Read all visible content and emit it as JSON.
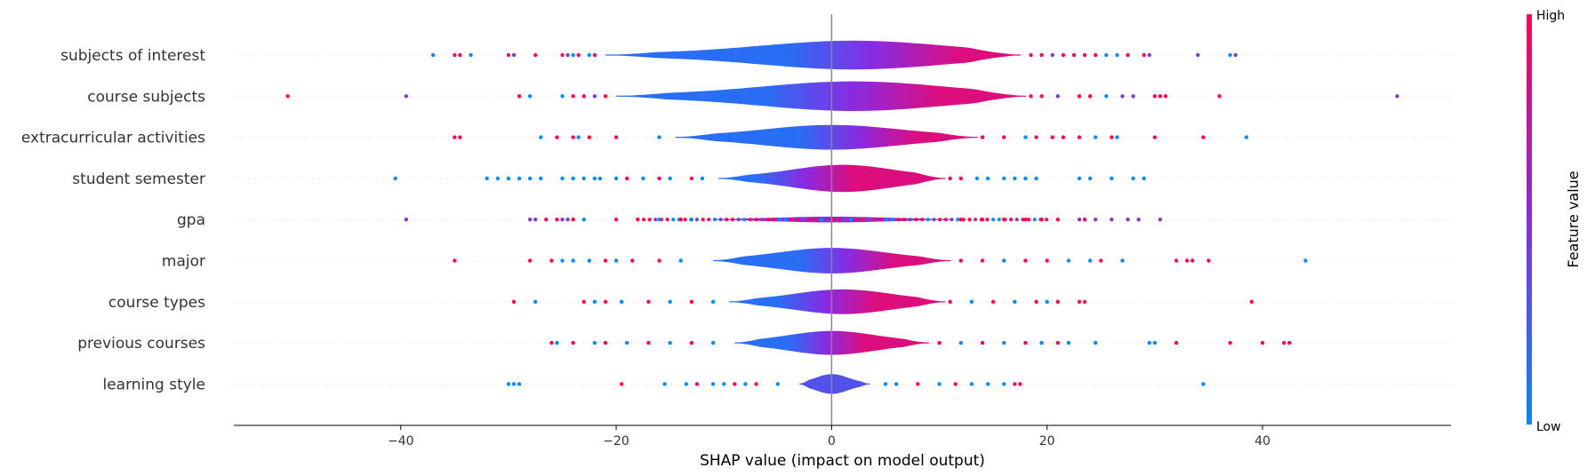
{
  "chart_data": {
    "type": "violin",
    "xlabel": "SHAP value (impact on model output)",
    "xlim": [
      -55.5,
      57.5
    ],
    "xticks": [
      -40,
      -20,
      0,
      20,
      40
    ],
    "xtick_labels": [
      "−40",
      "−20",
      "0",
      "20",
      "40"
    ],
    "features": [
      {
        "name": "subjects of interest",
        "violin_range": [
          -21,
          17.5
        ],
        "max_halfwidth": 0.35,
        "peak_at": 2,
        "color_low": -4,
        "color_high": 12,
        "outliers": [
          [
            -37,
            "low"
          ],
          [
            -35,
            "high"
          ],
          [
            -34.5,
            "high"
          ],
          [
            -33.5,
            "low"
          ],
          [
            -30,
            "high"
          ],
          [
            -29.5,
            "mid"
          ],
          [
            -27.5,
            "high"
          ],
          [
            -25,
            "high"
          ],
          [
            -24.5,
            "mid"
          ],
          [
            -24,
            "low"
          ],
          [
            -23.5,
            "high"
          ],
          [
            -22.5,
            "low"
          ],
          [
            -22,
            "high"
          ],
          [
            18.5,
            "high"
          ],
          [
            19.5,
            "high"
          ],
          [
            20.5,
            "mid"
          ],
          [
            21.5,
            "high"
          ],
          [
            22.5,
            "high"
          ],
          [
            23.5,
            "high"
          ],
          [
            24.5,
            "high"
          ],
          [
            25.5,
            "low"
          ],
          [
            26.5,
            "low"
          ],
          [
            27.5,
            "high"
          ],
          [
            29,
            "high"
          ],
          [
            29.5,
            "mid"
          ],
          [
            34,
            "mid"
          ],
          [
            37,
            "low"
          ],
          [
            37.5,
            "mid"
          ]
        ]
      },
      {
        "name": "course subjects",
        "violin_range": [
          -20,
          18
        ],
        "max_halfwidth": 0.36,
        "peak_at": 2,
        "color_low": -6,
        "color_high": 10,
        "outliers": [
          [
            -50.5,
            "high"
          ],
          [
            -39.5,
            "mid"
          ],
          [
            -29,
            "high"
          ],
          [
            -28,
            "low"
          ],
          [
            -25,
            "low"
          ],
          [
            -24,
            "high"
          ],
          [
            -23,
            "high"
          ],
          [
            -22,
            "mid"
          ],
          [
            -21,
            "high"
          ],
          [
            18.5,
            "high"
          ],
          [
            19.5,
            "high"
          ],
          [
            21,
            "mid"
          ],
          [
            23,
            "high"
          ],
          [
            24,
            "high"
          ],
          [
            25.5,
            "low"
          ],
          [
            27,
            "mid"
          ],
          [
            28,
            "mid"
          ],
          [
            30,
            "high"
          ],
          [
            30.5,
            "high"
          ],
          [
            31,
            "high"
          ],
          [
            36,
            "high"
          ],
          [
            52.5,
            "mid"
          ]
        ]
      },
      {
        "name": "extracurricular activities",
        "violin_range": [
          -14.5,
          13.5
        ],
        "max_halfwidth": 0.3,
        "peak_at": 0,
        "color_low": -3,
        "color_high": 8,
        "outliers": [
          [
            -35,
            "high"
          ],
          [
            -34.5,
            "high"
          ],
          [
            -27,
            "low"
          ],
          [
            -25.5,
            "high"
          ],
          [
            -24,
            "high"
          ],
          [
            -23.5,
            "low"
          ],
          [
            -22.5,
            "high"
          ],
          [
            -20,
            "high"
          ],
          [
            -16,
            "low"
          ],
          [
            14,
            "high"
          ],
          [
            16,
            "high"
          ],
          [
            18,
            "low"
          ],
          [
            19,
            "high"
          ],
          [
            20.5,
            "high"
          ],
          [
            21.5,
            "high"
          ],
          [
            23,
            "high"
          ],
          [
            24.5,
            "low"
          ],
          [
            26,
            "high"
          ],
          [
            26.5,
            "low"
          ],
          [
            30,
            "high"
          ],
          [
            34.5,
            "high"
          ],
          [
            38.5,
            "low"
          ]
        ]
      },
      {
        "name": "student semester",
        "violin_range": [
          -10.5,
          10.5
        ],
        "max_halfwidth": 0.33,
        "peak_at": 1,
        "color_low": -7,
        "color_high": 2,
        "outliers": [
          [
            -40.5,
            "low"
          ],
          [
            -32,
            "low"
          ],
          [
            -31,
            "low"
          ],
          [
            -30,
            "low"
          ],
          [
            -29,
            "low"
          ],
          [
            -28,
            "low"
          ],
          [
            -27,
            "low"
          ],
          [
            -25,
            "low"
          ],
          [
            -24,
            "low"
          ],
          [
            -23,
            "low"
          ],
          [
            -22,
            "low"
          ],
          [
            -21.5,
            "low"
          ],
          [
            -20,
            "low"
          ],
          [
            -19,
            "high"
          ],
          [
            -17.5,
            "low"
          ],
          [
            -16,
            "high"
          ],
          [
            -15,
            "low"
          ],
          [
            -13,
            "high"
          ],
          [
            -12,
            "low"
          ],
          [
            11,
            "high"
          ],
          [
            12,
            "high"
          ],
          [
            13.5,
            "low"
          ],
          [
            14.5,
            "low"
          ],
          [
            16,
            "low"
          ],
          [
            17,
            "low"
          ],
          [
            18,
            "low"
          ],
          [
            19,
            "low"
          ],
          [
            23,
            "low"
          ],
          [
            24,
            "low"
          ],
          [
            26,
            "low"
          ],
          [
            28,
            "low"
          ],
          [
            29,
            "low"
          ]
        ]
      },
      {
        "name": "gpa",
        "violin_range": [
          -11,
          11
        ],
        "max_halfwidth": 0.07,
        "peak_at": 0,
        "color_low": -99,
        "color_high": 99,
        "outliers": [
          [
            -39.5,
            "mid"
          ],
          [
            -28,
            "mid"
          ],
          [
            -27.5,
            "mid"
          ],
          [
            -26.5,
            "high"
          ],
          [
            -25.5,
            "high"
          ],
          [
            -25,
            "mid"
          ],
          [
            -24.5,
            "mid"
          ],
          [
            -24,
            "high"
          ],
          [
            -23,
            "low"
          ],
          [
            -20,
            "high"
          ],
          [
            -18,
            "high"
          ],
          [
            -16,
            "low"
          ],
          [
            -14,
            "high"
          ],
          [
            -13,
            "low"
          ],
          [
            12,
            "high"
          ],
          [
            14,
            "high"
          ],
          [
            16,
            "high"
          ],
          [
            18,
            "high"
          ],
          [
            19.5,
            "high"
          ],
          [
            21,
            "high"
          ],
          [
            23,
            "mid"
          ],
          [
            23.5,
            "high"
          ],
          [
            24.5,
            "mid"
          ],
          [
            26,
            "mid"
          ],
          [
            27.5,
            "mid"
          ],
          [
            28.5,
            "mid"
          ],
          [
            30.5,
            "mid"
          ]
        ]
      },
      {
        "name": "major",
        "violin_range": [
          -11,
          11
        ],
        "max_halfwidth": 0.31,
        "peak_at": 0,
        "color_low": -3,
        "color_high": 6,
        "outliers": [
          [
            -35,
            "high"
          ],
          [
            -28,
            "high"
          ],
          [
            -26,
            "high"
          ],
          [
            -25,
            "low"
          ],
          [
            -24,
            "low"
          ],
          [
            -22.5,
            "low"
          ],
          [
            -21,
            "high"
          ],
          [
            -20,
            "low"
          ],
          [
            -18.5,
            "high"
          ],
          [
            -16,
            "high"
          ],
          [
            -14,
            "low"
          ],
          [
            12,
            "high"
          ],
          [
            14,
            "high"
          ],
          [
            16,
            "low"
          ],
          [
            18,
            "high"
          ],
          [
            20,
            "high"
          ],
          [
            22,
            "low"
          ],
          [
            24,
            "low"
          ],
          [
            25,
            "high"
          ],
          [
            27,
            "low"
          ],
          [
            32,
            "high"
          ],
          [
            33,
            "high"
          ],
          [
            33.5,
            "high"
          ],
          [
            35,
            "high"
          ],
          [
            44,
            "low"
          ]
        ]
      },
      {
        "name": "course types",
        "violin_range": [
          -9.5,
          10.5
        ],
        "max_halfwidth": 0.3,
        "peak_at": 1,
        "color_low": -5,
        "color_high": 4,
        "outliers": [
          [
            -29.5,
            "high"
          ],
          [
            -27.5,
            "low"
          ],
          [
            -23,
            "high"
          ],
          [
            -22,
            "low"
          ],
          [
            -21,
            "high"
          ],
          [
            -19.5,
            "low"
          ],
          [
            -17,
            "high"
          ],
          [
            -15,
            "low"
          ],
          [
            -13,
            "high"
          ],
          [
            -11,
            "low"
          ],
          [
            11,
            "high"
          ],
          [
            13,
            "low"
          ],
          [
            15,
            "high"
          ],
          [
            17,
            "low"
          ],
          [
            19,
            "high"
          ],
          [
            20,
            "low"
          ],
          [
            21,
            "high"
          ],
          [
            23,
            "high"
          ],
          [
            23.5,
            "high"
          ],
          [
            39,
            "high"
          ]
        ]
      },
      {
        "name": "previous courses",
        "violin_range": [
          -9,
          9
        ],
        "max_halfwidth": 0.29,
        "peak_at": 0,
        "color_low": -4,
        "color_high": 3,
        "outliers": [
          [
            -26,
            "high"
          ],
          [
            -25.5,
            "low"
          ],
          [
            -24,
            "high"
          ],
          [
            -22,
            "low"
          ],
          [
            -21,
            "high"
          ],
          [
            -19,
            "low"
          ],
          [
            -17,
            "high"
          ],
          [
            -15,
            "low"
          ],
          [
            -13,
            "high"
          ],
          [
            -11,
            "low"
          ],
          [
            10,
            "high"
          ],
          [
            12,
            "low"
          ],
          [
            14,
            "high"
          ],
          [
            16,
            "low"
          ],
          [
            18,
            "high"
          ],
          [
            19.5,
            "low"
          ],
          [
            21,
            "high"
          ],
          [
            22,
            "low"
          ],
          [
            24.5,
            "low"
          ],
          [
            29.5,
            "low"
          ],
          [
            30,
            "low"
          ],
          [
            32,
            "high"
          ],
          [
            37,
            "high"
          ],
          [
            40,
            "high"
          ],
          [
            42,
            "high"
          ],
          [
            42.5,
            "high"
          ]
        ]
      },
      {
        "name": "learning style",
        "violin_range": [
          -3,
          3.5
        ],
        "max_halfwidth": 0.24,
        "peak_at": 0,
        "color_low": 0,
        "color_high": 99,
        "outliers": [
          [
            -30,
            "low"
          ],
          [
            -29.5,
            "low"
          ],
          [
            -29,
            "low"
          ],
          [
            -19.5,
            "high"
          ],
          [
            -15.5,
            "low"
          ],
          [
            -13.5,
            "low"
          ],
          [
            -12.5,
            "high"
          ],
          [
            -11,
            "low"
          ],
          [
            -10,
            "low"
          ],
          [
            -9,
            "high"
          ],
          [
            -8,
            "low"
          ],
          [
            -7,
            "high"
          ],
          [
            -5,
            "low"
          ],
          [
            5,
            "low"
          ],
          [
            6,
            "low"
          ],
          [
            8,
            "high"
          ],
          [
            10,
            "low"
          ],
          [
            11.5,
            "high"
          ],
          [
            13,
            "low"
          ],
          [
            14.5,
            "low"
          ],
          [
            16,
            "low"
          ],
          [
            17,
            "high"
          ],
          [
            17.5,
            "high"
          ],
          [
            34.5,
            "low"
          ]
        ]
      }
    ],
    "colorbar": {
      "title": "Feature value",
      "high_label": "High",
      "low_label": "Low",
      "low_color": "#008bfb",
      "high_color": "#ff0052",
      "mid_color": "#8a2be2"
    },
    "grid": false
  }
}
